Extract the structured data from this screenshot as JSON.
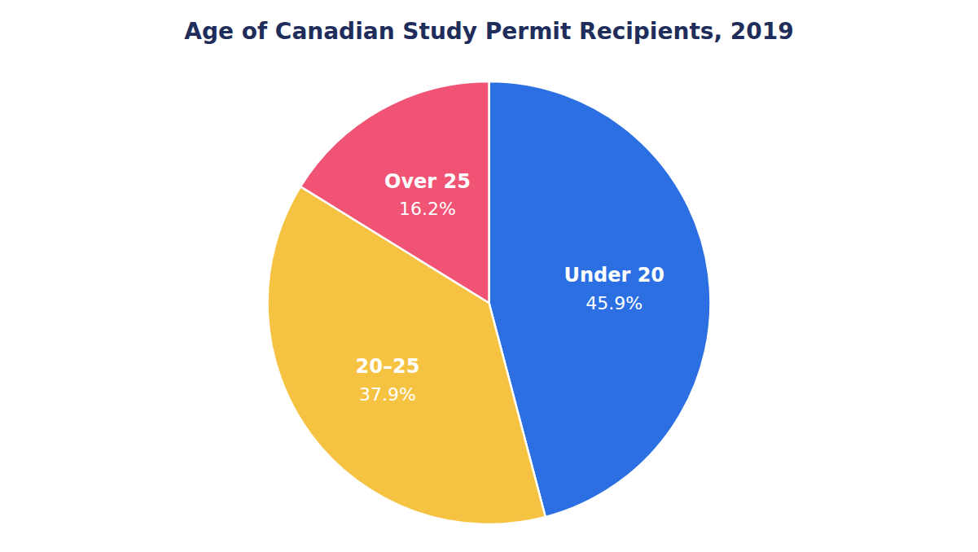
{
  "chart_data": {
    "type": "pie",
    "title": "Age of Canadian Study Permit Recipients, 2019",
    "categories": [
      "Under 20",
      "20–25",
      "Over 25"
    ],
    "values": [
      45.9,
      37.9,
      16.2
    ],
    "value_labels": [
      "45.9%",
      "37.9%",
      "16.2%"
    ],
    "colors": [
      "#2B6FE3",
      "#F5C242",
      "#F05373"
    ],
    "data_labels": true
  }
}
